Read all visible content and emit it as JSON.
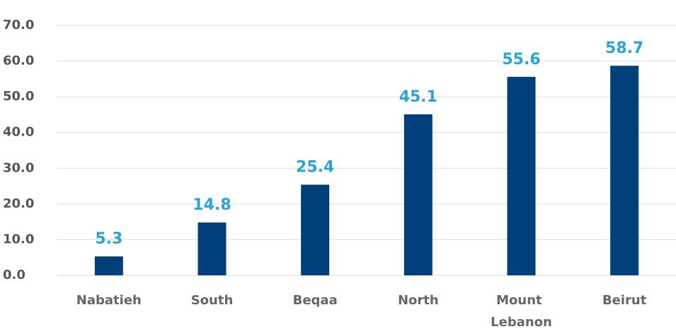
{
  "chart_data": {
    "type": "bar",
    "categories": [
      "Nabatieh",
      "South",
      "Beqaa",
      "North",
      "Mount Lebanon",
      "Beirut"
    ],
    "values": [
      5.3,
      14.8,
      25.4,
      45.1,
      55.6,
      58.7
    ],
    "color": "#00407a",
    "label_color": "#2aa3d6",
    "ylim": [
      0,
      70
    ],
    "yticks": [
      {
        "value": 0,
        "label": "0.0"
      },
      {
        "value": 10,
        "label": "10.0"
      },
      {
        "value": 20,
        "label": "20.0"
      },
      {
        "value": 30,
        "label": "30.0"
      },
      {
        "value": 40,
        "label": "40.0"
      },
      {
        "value": 50,
        "label": "50.0"
      },
      {
        "value": 60,
        "label": "60.0"
      },
      {
        "value": 70,
        "label": "70.0"
      }
    ],
    "grid": true
  }
}
